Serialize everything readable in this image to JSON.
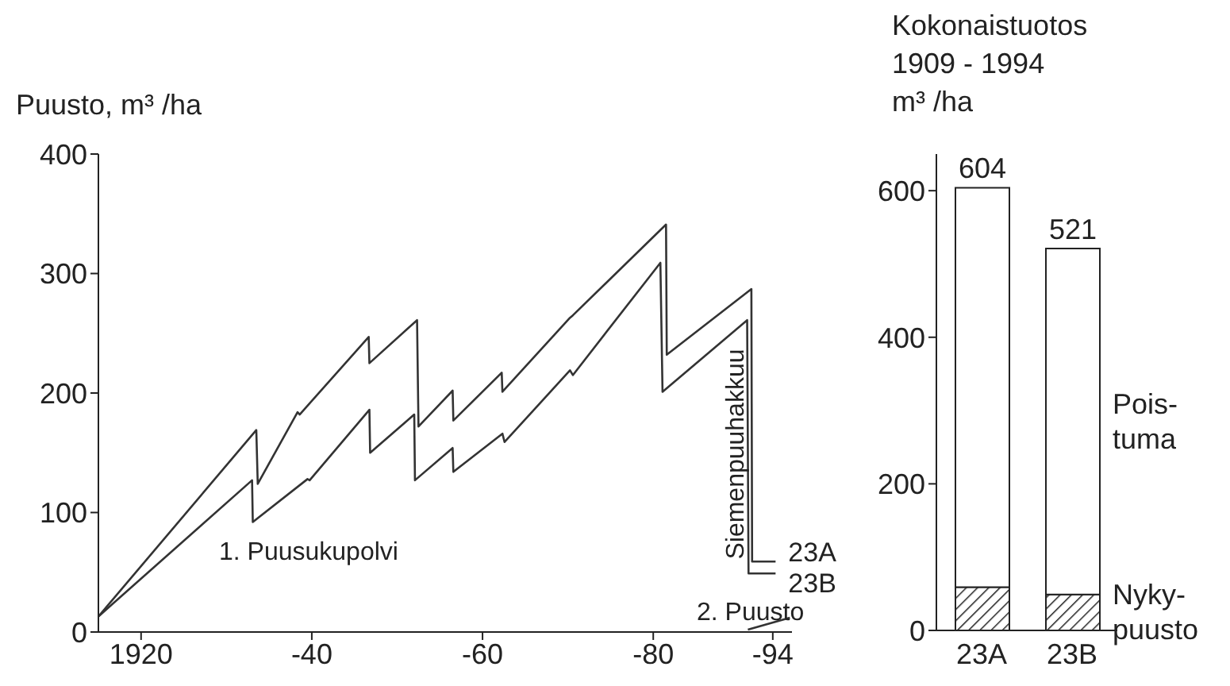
{
  "chart_data": [
    {
      "type": "line",
      "ylabel": "Puusto, m³ /ha",
      "xlim": [
        "1915",
        "1996-04"
      ],
      "xticks": [
        {
          "value": "1920",
          "label": "1920"
        },
        {
          "value": "1940",
          "label": "-40"
        },
        {
          "value": "1960",
          "label": "-60"
        },
        {
          "value": "1980",
          "label": "-80"
        },
        {
          "value": "1994",
          "label": "-94"
        }
      ],
      "ylim": [
        0,
        400
      ],
      "yticks": [
        0,
        100,
        200,
        300,
        400
      ],
      "series": [
        {
          "name": "23A",
          "color": "#333333",
          "x": [
            "1915-01",
            "1933-07",
            "1933-09",
            "1938-05",
            "1938-08",
            "1946-09",
            "1946-10",
            "1952-05",
            "1952-07",
            "1956-07",
            "1956-08",
            "1962-04",
            "1962-05",
            "1970-04",
            "1970-08",
            "1981-07",
            "1981-08",
            "1991-07",
            "1991-08",
            "1994-05"
          ],
          "values": [
            13,
            169,
            124,
            184,
            182,
            247,
            225,
            261,
            172,
            202,
            177,
            217,
            201,
            263,
            265,
            341,
            232,
            287,
            59,
            59
          ]
        },
        {
          "name": "23B",
          "color": "#333333",
          "x": [
            "1915-01",
            "1933-01",
            "1933-02",
            "1939-07",
            "1939-10",
            "1946-10",
            "1946-11",
            "1952-01",
            "1952-02",
            "1956-07",
            "1956-08",
            "1962-05",
            "1962-08",
            "1970-04",
            "1970-08",
            "1980-11",
            "1981-02",
            "1991-01",
            "1991-03",
            "1994-05"
          ],
          "values": [
            13,
            127,
            92,
            128,
            127,
            186,
            150,
            182,
            127,
            154,
            134,
            166,
            159,
            219,
            215,
            309,
            201,
            261,
            49,
            49
          ]
        },
        {
          "color": "#333333",
          "x": [
            "1991-02",
            "1996-01"
          ],
          "values": [
            2,
            12
          ]
        }
      ],
      "annotations": [
        "1. Puusukupolvi",
        "Siemenpuuhakkuu",
        "2. Puusto"
      ]
    },
    {
      "type": "bar",
      "stacked": true,
      "title": "Kokonaistuotos 1909 - 1994",
      "ylabel": "m³ /ha",
      "categories": [
        "23A",
        "23B"
      ],
      "ylim": [
        0,
        650
      ],
      "yticks": [
        0,
        200,
        400,
        600
      ],
      "series": [
        {
          "name": "Nyky-puusto",
          "color": "#222222",
          "values": [
            59,
            49
          ]
        },
        {
          "name": "Pois-tuma",
          "color": "#ffffff",
          "values": [
            545,
            472
          ]
        }
      ],
      "totals": [
        "604",
        "521"
      ]
    }
  ]
}
